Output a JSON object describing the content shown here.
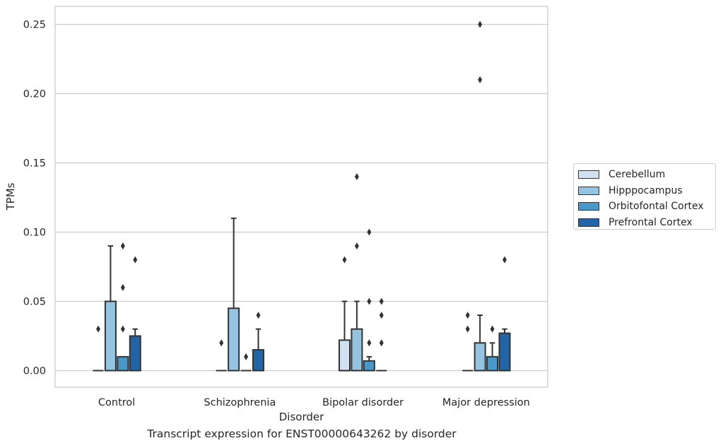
{
  "chart_data": {
    "type": "boxplot",
    "title": "Transcript expression for ENST00000643262 by disorder",
    "xlabel": "Disorder",
    "ylabel": "TPMs",
    "ylim": [
      -0.012,
      0.263
    ],
    "yticks": [
      "0.00",
      "0.05",
      "0.10",
      "0.15",
      "0.20",
      "0.25"
    ],
    "ytick_values": [
      0,
      0.05,
      0.1,
      0.15,
      0.2,
      0.25
    ],
    "grid": "horizontal",
    "legend_position": "right",
    "categories": [
      "Control",
      "Schizophrenia",
      "Bipolar disorder",
      "Major depression"
    ],
    "series": [
      {
        "name": "Cerebellum",
        "color": "#d0e1f2",
        "boxes": [
          {
            "q1": 0,
            "median": 0,
            "q3": 0,
            "whisker_low": 0,
            "whisker_high": 0,
            "outliers": [
              0.03
            ]
          },
          {
            "q1": 0,
            "median": 0,
            "q3": 0,
            "whisker_low": 0,
            "whisker_high": 0,
            "outliers": [
              0.02
            ]
          },
          {
            "q1": 0,
            "median": 0,
            "q3": 0.022,
            "whisker_low": 0,
            "whisker_high": 0.05,
            "outliers": [
              0.08
            ]
          },
          {
            "q1": 0,
            "median": 0,
            "q3": 0,
            "whisker_low": 0,
            "whisker_high": 0,
            "outliers": [
              0.03,
              0.04
            ]
          }
        ]
      },
      {
        "name": "Hipppocampus",
        "color": "#94c4df",
        "boxes": [
          {
            "q1": 0,
            "median": 0,
            "q3": 0.05,
            "whisker_low": 0,
            "whisker_high": 0.09,
            "outliers": []
          },
          {
            "q1": 0,
            "median": 0,
            "q3": 0.045,
            "whisker_low": 0,
            "whisker_high": 0.11,
            "outliers": []
          },
          {
            "q1": 0,
            "median": 0,
            "q3": 0.03,
            "whisker_low": 0,
            "whisker_high": 0.05,
            "outliers": [
              0.09,
              0.14
            ]
          },
          {
            "q1": 0,
            "median": 0,
            "q3": 0.02,
            "whisker_low": 0,
            "whisker_high": 0.04,
            "outliers": [
              0.21,
              0.25
            ]
          }
        ]
      },
      {
        "name": "Orbitofontal Cortex",
        "color": "#4a98c9",
        "boxes": [
          {
            "q1": 0,
            "median": 0,
            "q3": 0.01,
            "whisker_low": 0,
            "whisker_high": 0.01,
            "outliers": [
              0.03,
              0.06,
              0.09
            ]
          },
          {
            "q1": 0,
            "median": 0,
            "q3": 0,
            "whisker_low": 0,
            "whisker_high": 0,
            "outliers": [
              0.01
            ]
          },
          {
            "q1": 0,
            "median": 0,
            "q3": 0.007,
            "whisker_low": 0,
            "whisker_high": 0.01,
            "outliers": [
              0.02,
              0.05,
              0.1
            ]
          },
          {
            "q1": 0,
            "median": 0,
            "q3": 0.01,
            "whisker_low": 0,
            "whisker_high": 0.02,
            "outliers": [
              0.03
            ]
          }
        ]
      },
      {
        "name": "Prefrontal Cortex",
        "color": "#2264a8",
        "boxes": [
          {
            "q1": 0,
            "median": 0,
            "q3": 0.025,
            "whisker_low": 0,
            "whisker_high": 0.03,
            "outliers": [
              0.08
            ]
          },
          {
            "q1": 0,
            "median": 0,
            "q3": 0.015,
            "whisker_low": 0,
            "whisker_high": 0.03,
            "outliers": [
              0.04
            ]
          },
          {
            "q1": 0,
            "median": 0,
            "q3": 0,
            "whisker_low": 0,
            "whisker_high": 0,
            "outliers": [
              0.02,
              0.04,
              0.05
            ]
          },
          {
            "q1": 0,
            "median": 0,
            "q3": 0.027,
            "whisker_low": 0,
            "whisker_high": 0.03,
            "outliers": [
              0.08
            ]
          }
        ]
      }
    ]
  }
}
